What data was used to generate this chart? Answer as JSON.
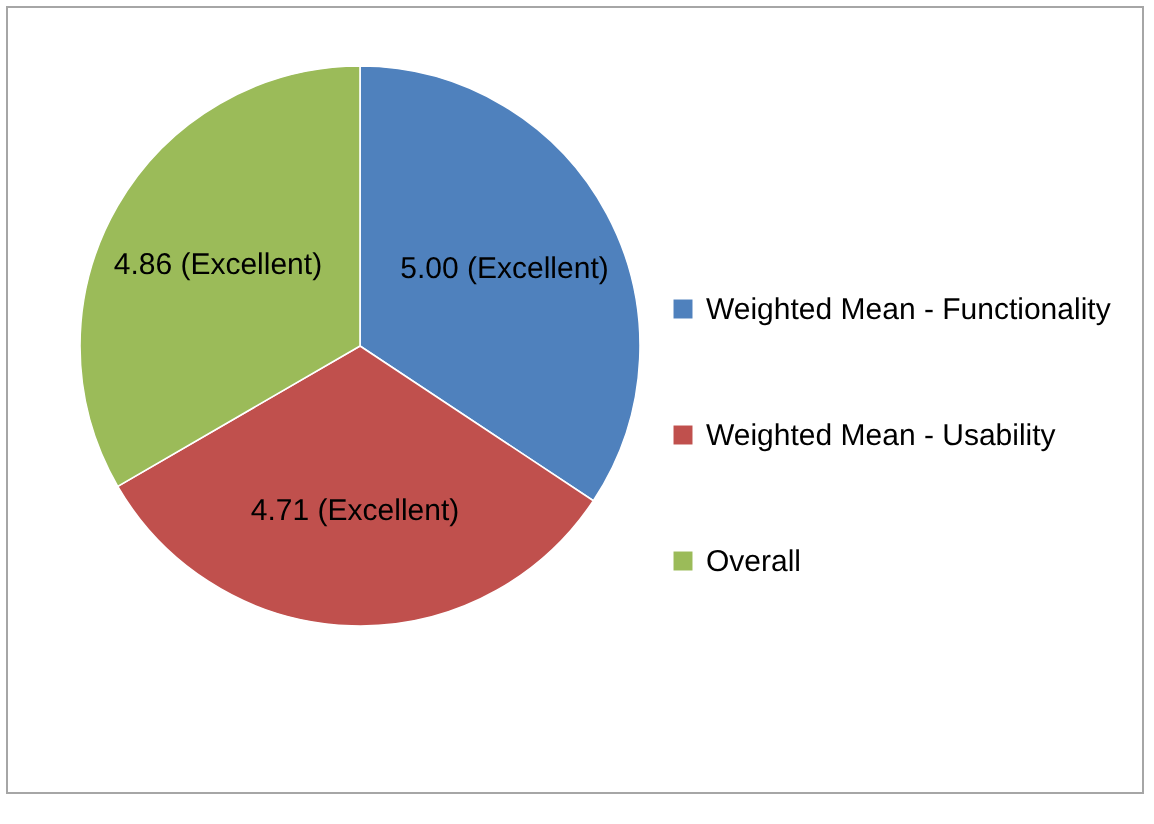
{
  "chart_data": {
    "type": "pie",
    "categories": [
      "Weighted Mean - Functionality",
      "Weighted Mean - Usability",
      "Overall"
    ],
    "values": [
      5.0,
      4.71,
      4.86
    ],
    "colors": [
      "#4f81bd",
      "#c0504d",
      "#9bbb59"
    ],
    "value_labels": [
      "5.00 (Excellent)",
      "4.71 (Excellent)",
      "4.86 (Excellent)"
    ],
    "legend": "right"
  }
}
